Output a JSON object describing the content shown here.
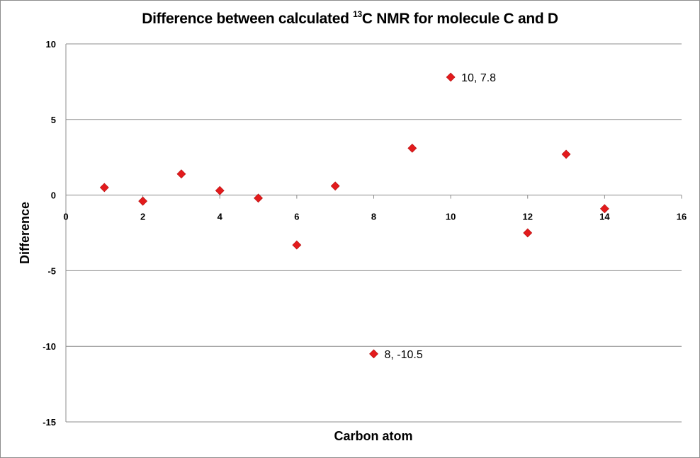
{
  "chart_data": {
    "type": "scatter",
    "title_prefix": "Difference between calculated ",
    "title_superscript": "13",
    "title_suffix": "C NMR for molecule C and D",
    "xlabel": "Carbon atom",
    "ylabel": "Difference",
    "xlim": [
      0,
      16
    ],
    "ylim": [
      -15,
      10
    ],
    "x_ticks": [
      "0",
      "2",
      "4",
      "6",
      "8",
      "10",
      "12",
      "14",
      "16"
    ],
    "y_ticks": [
      "10",
      "5",
      "0",
      "-5",
      "-10",
      "-15"
    ],
    "grid": "horizontal",
    "marker": "diamond",
    "marker_color": "#e31a1c",
    "points": [
      {
        "x": 1,
        "y": 0.5
      },
      {
        "x": 2,
        "y": -0.4
      },
      {
        "x": 3,
        "y": 1.4
      },
      {
        "x": 4,
        "y": 0.3
      },
      {
        "x": 5,
        "y": -0.2
      },
      {
        "x": 6,
        "y": -3.3
      },
      {
        "x": 7,
        "y": 0.6
      },
      {
        "x": 8,
        "y": -10.5
      },
      {
        "x": 9,
        "y": 3.1
      },
      {
        "x": 10,
        "y": 7.8
      },
      {
        "x": 12,
        "y": -2.5
      },
      {
        "x": 13,
        "y": 2.7
      },
      {
        "x": 14,
        "y": -0.9
      }
    ],
    "annotations": [
      {
        "x": 10,
        "y": 7.8,
        "text": "10, 7.8"
      },
      {
        "x": 8,
        "y": -10.5,
        "text": "8, -10.5"
      }
    ]
  }
}
